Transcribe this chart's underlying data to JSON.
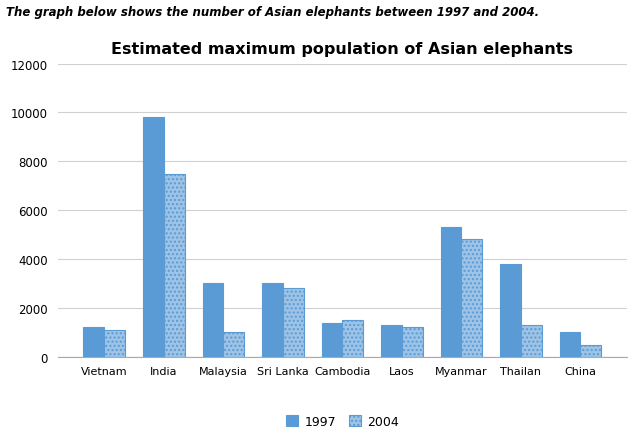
{
  "title": "Estimated maximum population of Asian elephants",
  "supertitle": "The graph below shows the number of Asian elephants between 1997 and 2004.",
  "categories": [
    "Vietnam",
    "India",
    "Malaysia",
    "Sri Lanka",
    "Cambodia",
    "Laos",
    "Myanmar",
    "Thailan",
    "China"
  ],
  "values_1997": [
    1200,
    9800,
    3000,
    3000,
    1400,
    1300,
    5300,
    3800,
    1000
  ],
  "values_2004": [
    1100,
    7500,
    1000,
    2800,
    1500,
    1200,
    4800,
    1300,
    500
  ],
  "color_1997": "#5B9BD5",
  "color_2004": "#9DC3E6",
  "hatch_1997": "////",
  "hatch_2004": "....",
  "ylim": [
    0,
    12000
  ],
  "yticks": [
    0,
    2000,
    4000,
    6000,
    8000,
    10000,
    12000
  ],
  "legend_labels": [
    "1997",
    "2004"
  ],
  "bar_width": 0.35,
  "background_color": "#ffffff",
  "plot_bg_color": "#ffffff",
  "grid_color": "#d0d0d0",
  "border_color": "#5B9BD5"
}
